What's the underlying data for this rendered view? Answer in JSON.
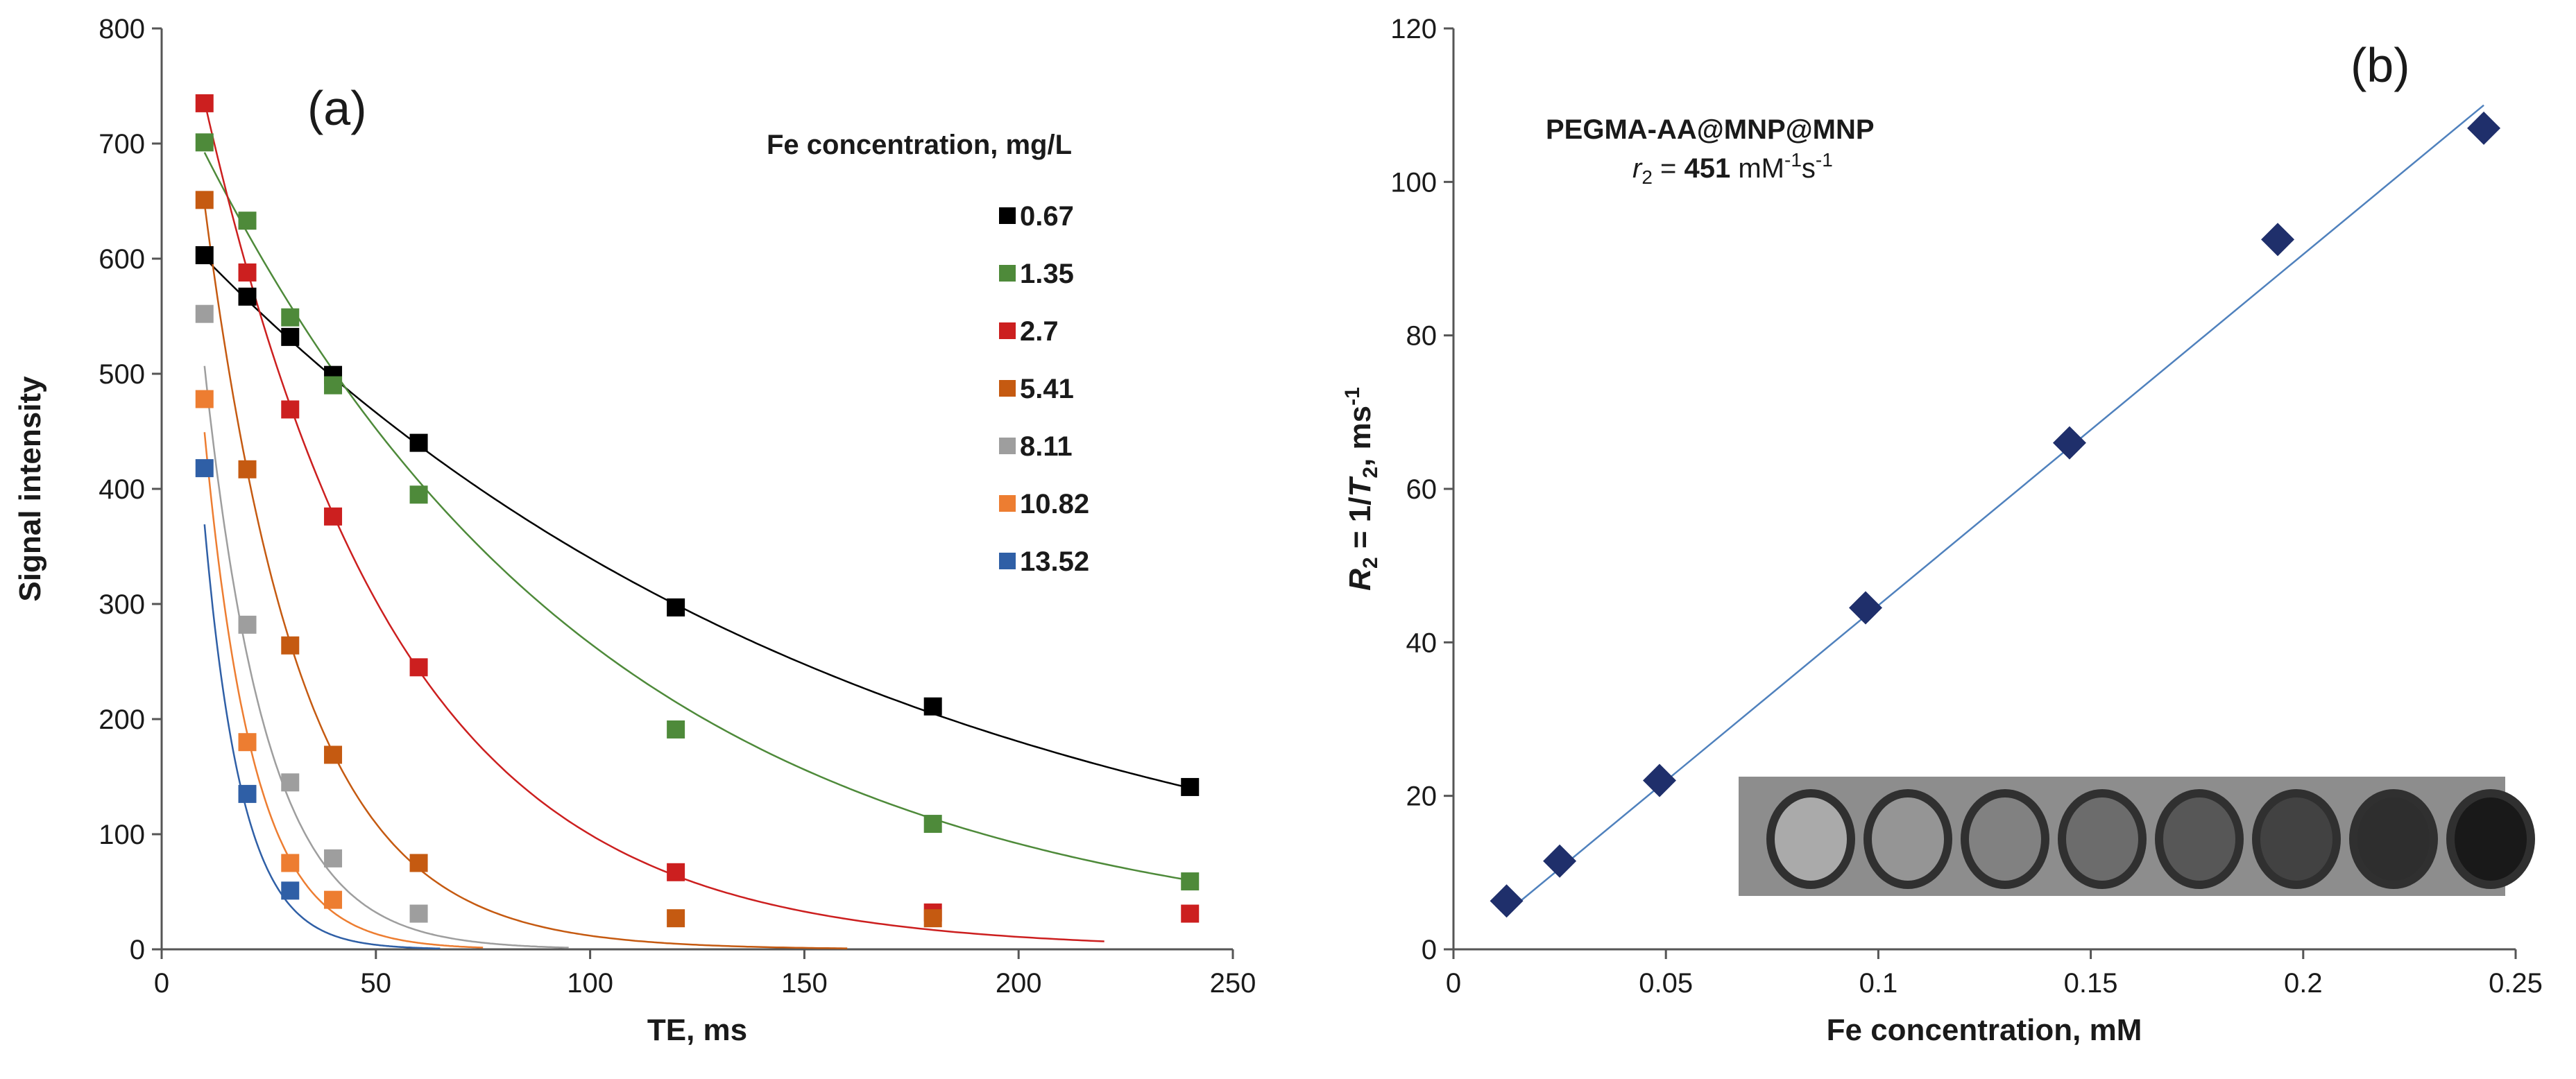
{
  "chart_data": [
    {
      "type": "scatter",
      "panel_label": "(a)",
      "xlabel": "TE, ms",
      "ylabel": "Signal intensity",
      "xlim": [
        0,
        250
      ],
      "ylim": [
        0,
        800
      ],
      "xticks": [
        "0",
        "50",
        "100",
        "150",
        "200",
        "250"
      ],
      "yticks": [
        "0",
        "100",
        "200",
        "300",
        "400",
        "500",
        "600",
        "700",
        "800"
      ],
      "legend_title": "Fe concentration, mg/L",
      "legend_position": "right",
      "series": [
        {
          "name": "0.67",
          "color": "#000000",
          "x": [
            10,
            20,
            30,
            40,
            60,
            120,
            180,
            240
          ],
          "y": [
            603,
            567,
            532,
            499,
            440,
            297,
            211,
            141
          ],
          "fit": {
            "a": 640,
            "t2": 158,
            "x_end": 240
          }
        },
        {
          "name": "1.35",
          "color": "#4e8a3a",
          "x": [
            10,
            20,
            30,
            40,
            60,
            120,
            180,
            240
          ],
          "y": [
            701,
            633,
            549,
            490,
            395,
            191,
            109,
            59
          ],
          "fit": {
            "a": 770,
            "t2": 94,
            "x_end": 240
          }
        },
        {
          "name": "2.7",
          "color": "#cc1f1f",
          "x": [
            10,
            20,
            30,
            40,
            60,
            120,
            180,
            240
          ],
          "y": [
            735,
            588,
            469,
            376,
            245,
            67,
            32,
            31
          ],
          "fit": {
            "a": 920,
            "t2": 45,
            "x_end": 220
          }
        },
        {
          "name": "5.41",
          "color": "#c55a11",
          "x": [
            10,
            20,
            30,
            40,
            60,
            120,
            180
          ],
          "y": [
            651,
            417,
            264,
            169,
            75,
            27,
            27
          ],
          "fit": {
            "a": 1010,
            "t2": 22.5,
            "x_end": 160
          }
        },
        {
          "name": "8.11",
          "color": "#9e9e9e",
          "x": [
            10,
            20,
            30,
            40,
            60
          ],
          "y": [
            552,
            282,
            145,
            79,
            31
          ],
          "fit": {
            "a": 1010,
            "t2": 14.5,
            "x_end": 95
          }
        },
        {
          "name": "10.82",
          "color": "#ed7d31",
          "x": [
            10,
            20,
            30,
            40
          ],
          "y": [
            478,
            180,
            75,
            43
          ],
          "fit": {
            "a": 1080,
            "t2": 11.4,
            "x_end": 75
          }
        },
        {
          "name": "13.52",
          "color": "#2f5fa6",
          "x": [
            10,
            20,
            30
          ],
          "y": [
            418,
            135,
            51
          ],
          "fit": {
            "a": 1150,
            "t2": 8.8,
            "x_end": 65
          }
        }
      ]
    },
    {
      "type": "scatter",
      "panel_label": "(b)",
      "xlabel": "Fe concentration, mM",
      "ylabel_parts": {
        "a": "R",
        "a_sub": "2",
        "b": " = 1/",
        "c": "T",
        "c_sub": "2",
        "d": ", ms",
        "d_sup": "-1"
      },
      "xlim": [
        0,
        0.25
      ],
      "ylim": [
        0,
        120
      ],
      "xticks": [
        "0",
        "0.05",
        "0.1",
        "0.15",
        "0.2",
        "0.25"
      ],
      "yticks": [
        "0",
        "20",
        "40",
        "60",
        "80",
        "100",
        "120"
      ],
      "annotation_title": "PEGMA-AA@MNP@MNP",
      "annotation_r2": {
        "r": "r",
        "sub": "2",
        "eq": " =  ",
        "value": "451",
        "unit": " mM",
        "sup1": "-1",
        "s": "s",
        "sup2": "-1"
      },
      "series": [
        {
          "name": "R2",
          "color": "#1f2f6b",
          "x": [
            0.0125,
            0.025,
            0.0485,
            0.097,
            0.145,
            0.194,
            0.2425
          ],
          "y": [
            6.3,
            11.5,
            22,
            44.5,
            66,
            92.5,
            107
          ]
        }
      ],
      "fit_line": {
        "color": "#4f81bd",
        "x": [
          0.0125,
          0.2425
        ],
        "y": [
          4.8,
          110
        ]
      },
      "inset_image": {
        "description_label": "MRI phantom",
        "spots": 8
      }
    }
  ]
}
